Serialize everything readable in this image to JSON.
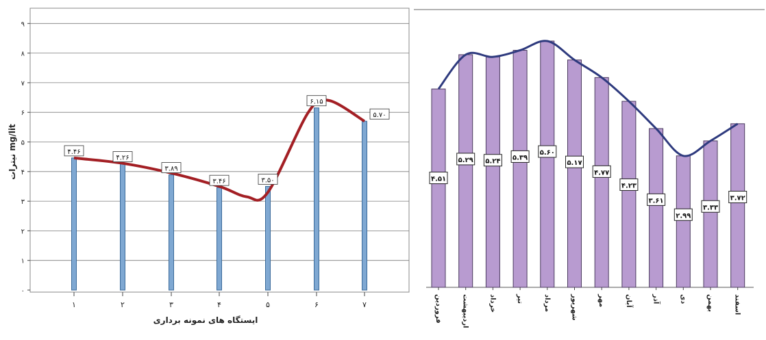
{
  "chart_data": [
    {
      "type": "bar",
      "title": "",
      "xlabel": "ایستگاه های نمونه برداری",
      "ylabel": "نیترات mg/lit",
      "ylim": [
        0,
        9
      ],
      "yticks": [
        "۰",
        "۱",
        "۲",
        "۳",
        "۴",
        "۵",
        "۶",
        "۷",
        "۸",
        "۹"
      ],
      "categories": [
        "۱",
        "۲",
        "۳",
        "۴",
        "۵",
        "۶",
        "۷"
      ],
      "values": [
        4.46,
        4.26,
        3.89,
        3.46,
        3.5,
        6.15,
        5.7
      ],
      "data_labels": [
        "۴.۴۶",
        "۴.۲۶",
        "۳.۸۹",
        "۳.۴۶",
        "۳.۵۰",
        "۶.۱۵",
        "۵.۷۰"
      ],
      "trendline": true,
      "grid": true,
      "colors": {
        "bar": "#7fa8d2",
        "bar_edge": "#3a6a9a",
        "trend": "#a31f24",
        "grid": "#7a7a7a"
      }
    },
    {
      "type": "bar",
      "title": "",
      "xlabel": "",
      "ylabel": "",
      "categories": [
        "فروردین",
        "اردیبهشت",
        "خرداد",
        "تیر",
        "مرداد",
        "شهریور",
        "مهر",
        "آبان",
        "آذر",
        "دی",
        "بهمن",
        "اسفند"
      ],
      "values": [
        4.51,
        5.29,
        5.24,
        5.39,
        5.6,
        5.17,
        4.77,
        4.23,
        3.61,
        2.99,
        3.33,
        3.72
      ],
      "data_labels": [
        "۴.۵۱",
        "۵.۲۹",
        "۵.۲۴",
        "۵.۳۹",
        "۵.۶۰",
        "۵.۱۷",
        "۴.۷۷",
        "۴.۲۳",
        "۳.۶۱",
        "۲.۹۹",
        "۳.۳۳",
        "۳.۷۲"
      ],
      "trendline": true,
      "grid": false,
      "colors": {
        "bar": "#b89bd0",
        "bar_edge": "#4a3a5e",
        "trend": "#2e3a7e"
      }
    }
  ]
}
